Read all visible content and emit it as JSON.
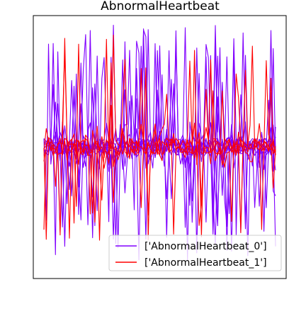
{
  "chart_data": {
    "type": "line",
    "title": "AbnormalHeartbeat",
    "xlabel": "",
    "ylabel": "",
    "x_ticks_visible": false,
    "y_ticks_visible": false,
    "grid": false,
    "legend": {
      "placement": "lower-right",
      "entries": [
        {
          "label": "['AbnormalHeartbeat_0']",
          "color": "#8000ff"
        },
        {
          "label": "['AbnormalHeartbeat_1']",
          "color": "#ff0000"
        }
      ]
    },
    "x_range": [
      0,
      100
    ],
    "y_range": [
      -2.6,
      2.6
    ],
    "series_summary": [
      {
        "class": "['AbnormalHeartbeat_0']",
        "color": "#8000ff",
        "approx_num_lines": 10,
        "baseline": 0.0,
        "spike_max": 2.45,
        "spike_min": -2.3
      },
      {
        "class": "['AbnormalHeartbeat_1']",
        "color": "#ff0000",
        "approx_num_lines": 4,
        "baseline": 0.0,
        "spike_max": 2.3,
        "spike_min": -1.9
      }
    ]
  }
}
